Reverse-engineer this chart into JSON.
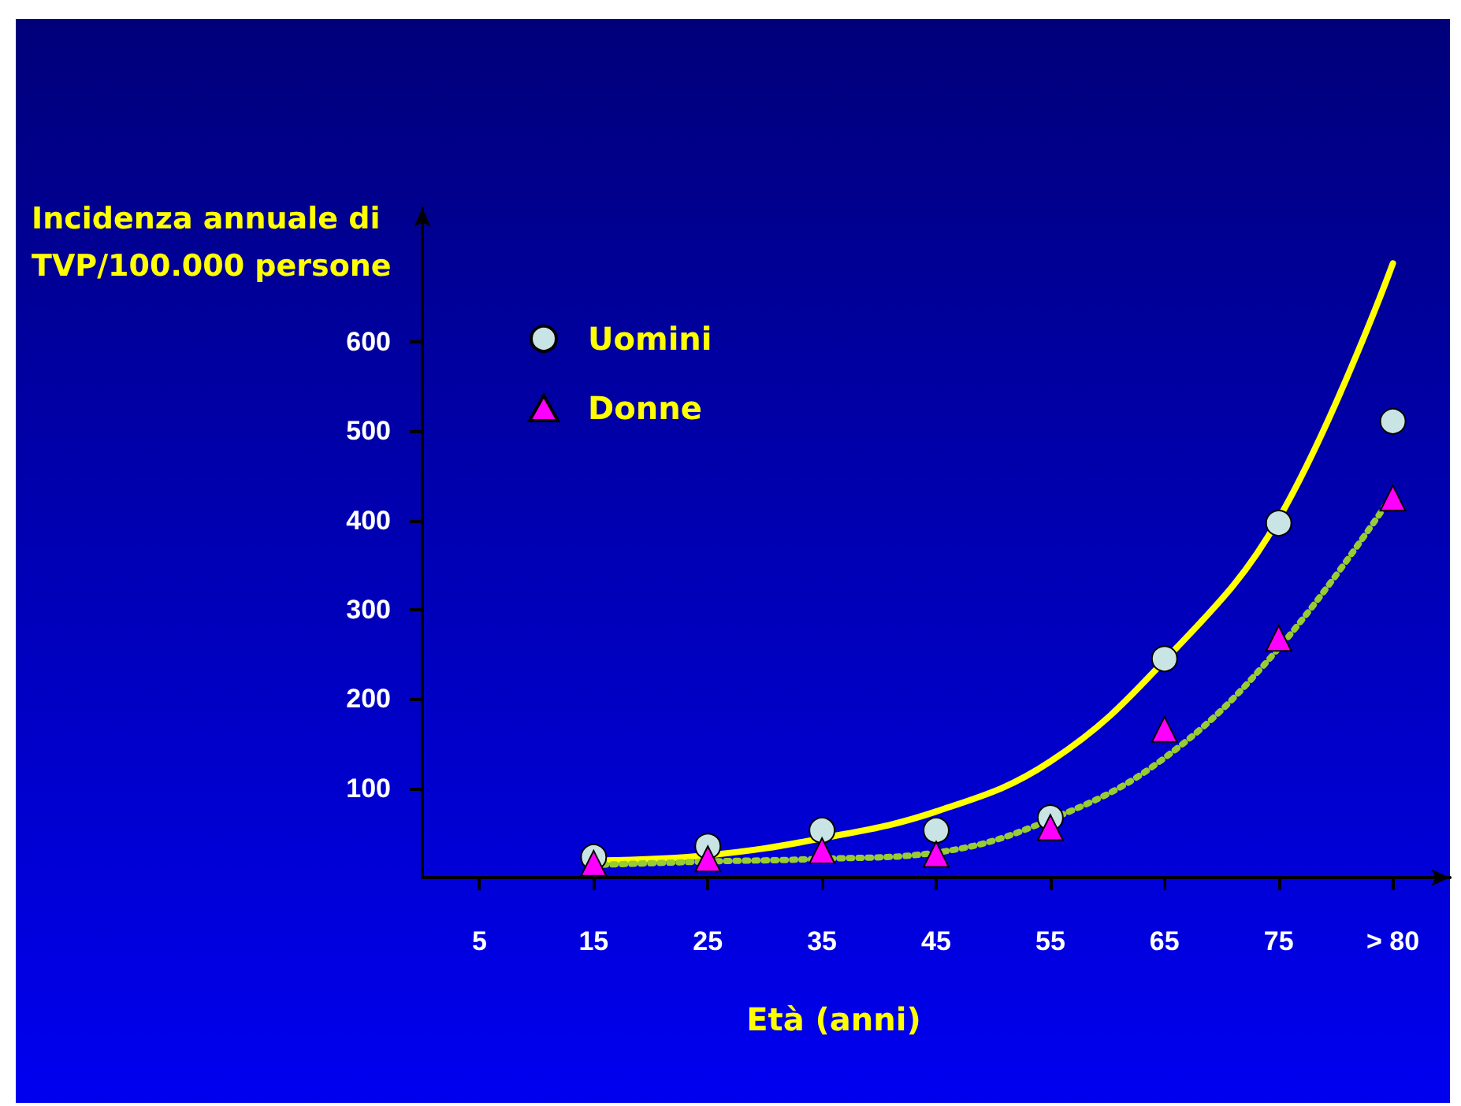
{
  "chart_data": {
    "type": "scatter",
    "xlabel": "Età (anni)",
    "ylabel": "Incidenza annuale di TVP/100.000 persone",
    "categories": [
      "5",
      "15",
      "25",
      "35",
      "45",
      "55",
      "65",
      "75",
      "> 80"
    ],
    "ylim": [
      0,
      750
    ],
    "yticks": [
      100,
      200,
      300,
      400,
      500,
      600
    ],
    "grid": false,
    "legend": "top left",
    "series": [
      {
        "name": "Uomini",
        "marker": "circle",
        "color": "#c8e4e4",
        "values": [
          null,
          23,
          35,
          53,
          53,
          67,
          245,
          397,
          511
        ]
      },
      {
        "name": "Donne",
        "marker": "triangle",
        "color": "#ff00ff",
        "values": [
          null,
          16,
          21,
          30,
          26,
          56,
          166,
          268,
          425
        ]
      },
      {
        "type": "line",
        "marker": "none",
        "line_style": "solid",
        "color": "#ffff00",
        "values": [
          null,
          19,
          25,
          44,
          74,
          130,
          243,
          402,
          688
        ]
      },
      {
        "type": "line",
        "marker": "none",
        "line_style": "dotted",
        "color": "#99cc33",
        "values": [
          null,
          14,
          18,
          21,
          28,
          65,
          134,
          257,
          429
        ]
      }
    ]
  }
}
